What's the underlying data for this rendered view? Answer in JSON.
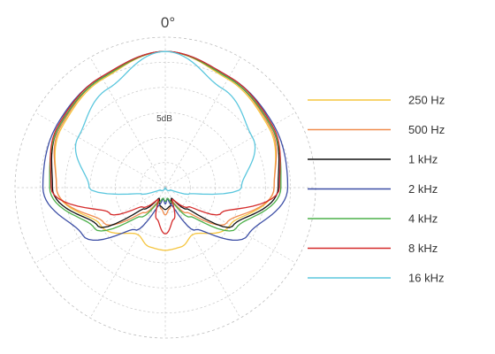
{
  "chart_data": {
    "type": "polar-line",
    "title": "",
    "angle_label": "0°",
    "radial_label": "5dB",
    "radial_rings": 6,
    "grid": true,
    "legend_position": "right",
    "series": [
      {
        "name": "250 Hz",
        "color": "#f5c53f",
        "polar": [
          [
            0,
            1.0
          ],
          [
            30,
            0.92
          ],
          [
            60,
            0.88
          ],
          [
            90,
            0.8
          ],
          [
            120,
            0.55
          ],
          [
            150,
            0.4
          ],
          [
            165,
            0.45
          ],
          [
            180,
            0.46
          ]
        ]
      },
      {
        "name": "500 Hz",
        "color": "#f08d4e",
        "polar": [
          [
            0,
            1.0
          ],
          [
            30,
            0.93
          ],
          [
            60,
            0.89
          ],
          [
            90,
            0.8
          ],
          [
            120,
            0.52
          ],
          [
            140,
            0.24
          ],
          [
            155,
            0.1
          ],
          [
            170,
            0.16
          ],
          [
            180,
            0.2
          ]
        ]
      },
      {
        "name": "1 kHz",
        "color": "#111111",
        "polar": [
          [
            0,
            1.0
          ],
          [
            30,
            0.93
          ],
          [
            60,
            0.9
          ],
          [
            90,
            0.83
          ],
          [
            120,
            0.57
          ],
          [
            135,
            0.22
          ],
          [
            150,
            0.09
          ],
          [
            165,
            0.14
          ],
          [
            180,
            0.16
          ]
        ]
      },
      {
        "name": "2 kHz",
        "color": "#3d4fa6",
        "polar": [
          [
            0,
            1.0
          ],
          [
            30,
            0.94
          ],
          [
            60,
            0.92
          ],
          [
            90,
            0.9
          ],
          [
            120,
            0.7
          ],
          [
            145,
            0.38
          ],
          [
            160,
            0.14
          ],
          [
            170,
            0.08
          ],
          [
            180,
            0.12
          ]
        ]
      },
      {
        "name": "4 kHz",
        "color": "#4db04a",
        "polar": [
          [
            0,
            1.0
          ],
          [
            30,
            0.93
          ],
          [
            60,
            0.9
          ],
          [
            90,
            0.85
          ],
          [
            120,
            0.6
          ],
          [
            140,
            0.28
          ],
          [
            155,
            0.12
          ],
          [
            168,
            0.08
          ],
          [
            180,
            0.1
          ]
        ]
      },
      {
        "name": "8 kHz",
        "color": "#d42a2a",
        "polar": [
          [
            0,
            1.0
          ],
          [
            30,
            0.94
          ],
          [
            60,
            0.91
          ],
          [
            90,
            0.84
          ],
          [
            115,
            0.45
          ],
          [
            130,
            0.22
          ],
          [
            150,
            0.1
          ],
          [
            165,
            0.24
          ],
          [
            180,
            0.34
          ]
        ]
      },
      {
        "name": "16 kHz",
        "color": "#5bc7de",
        "polar": [
          [
            0,
            1.0
          ],
          [
            30,
            0.84
          ],
          [
            60,
            0.74
          ],
          [
            90,
            0.56
          ],
          [
            105,
            0.18
          ],
          [
            115,
            0.04
          ],
          [
            180,
            0.0
          ]
        ]
      }
    ]
  }
}
